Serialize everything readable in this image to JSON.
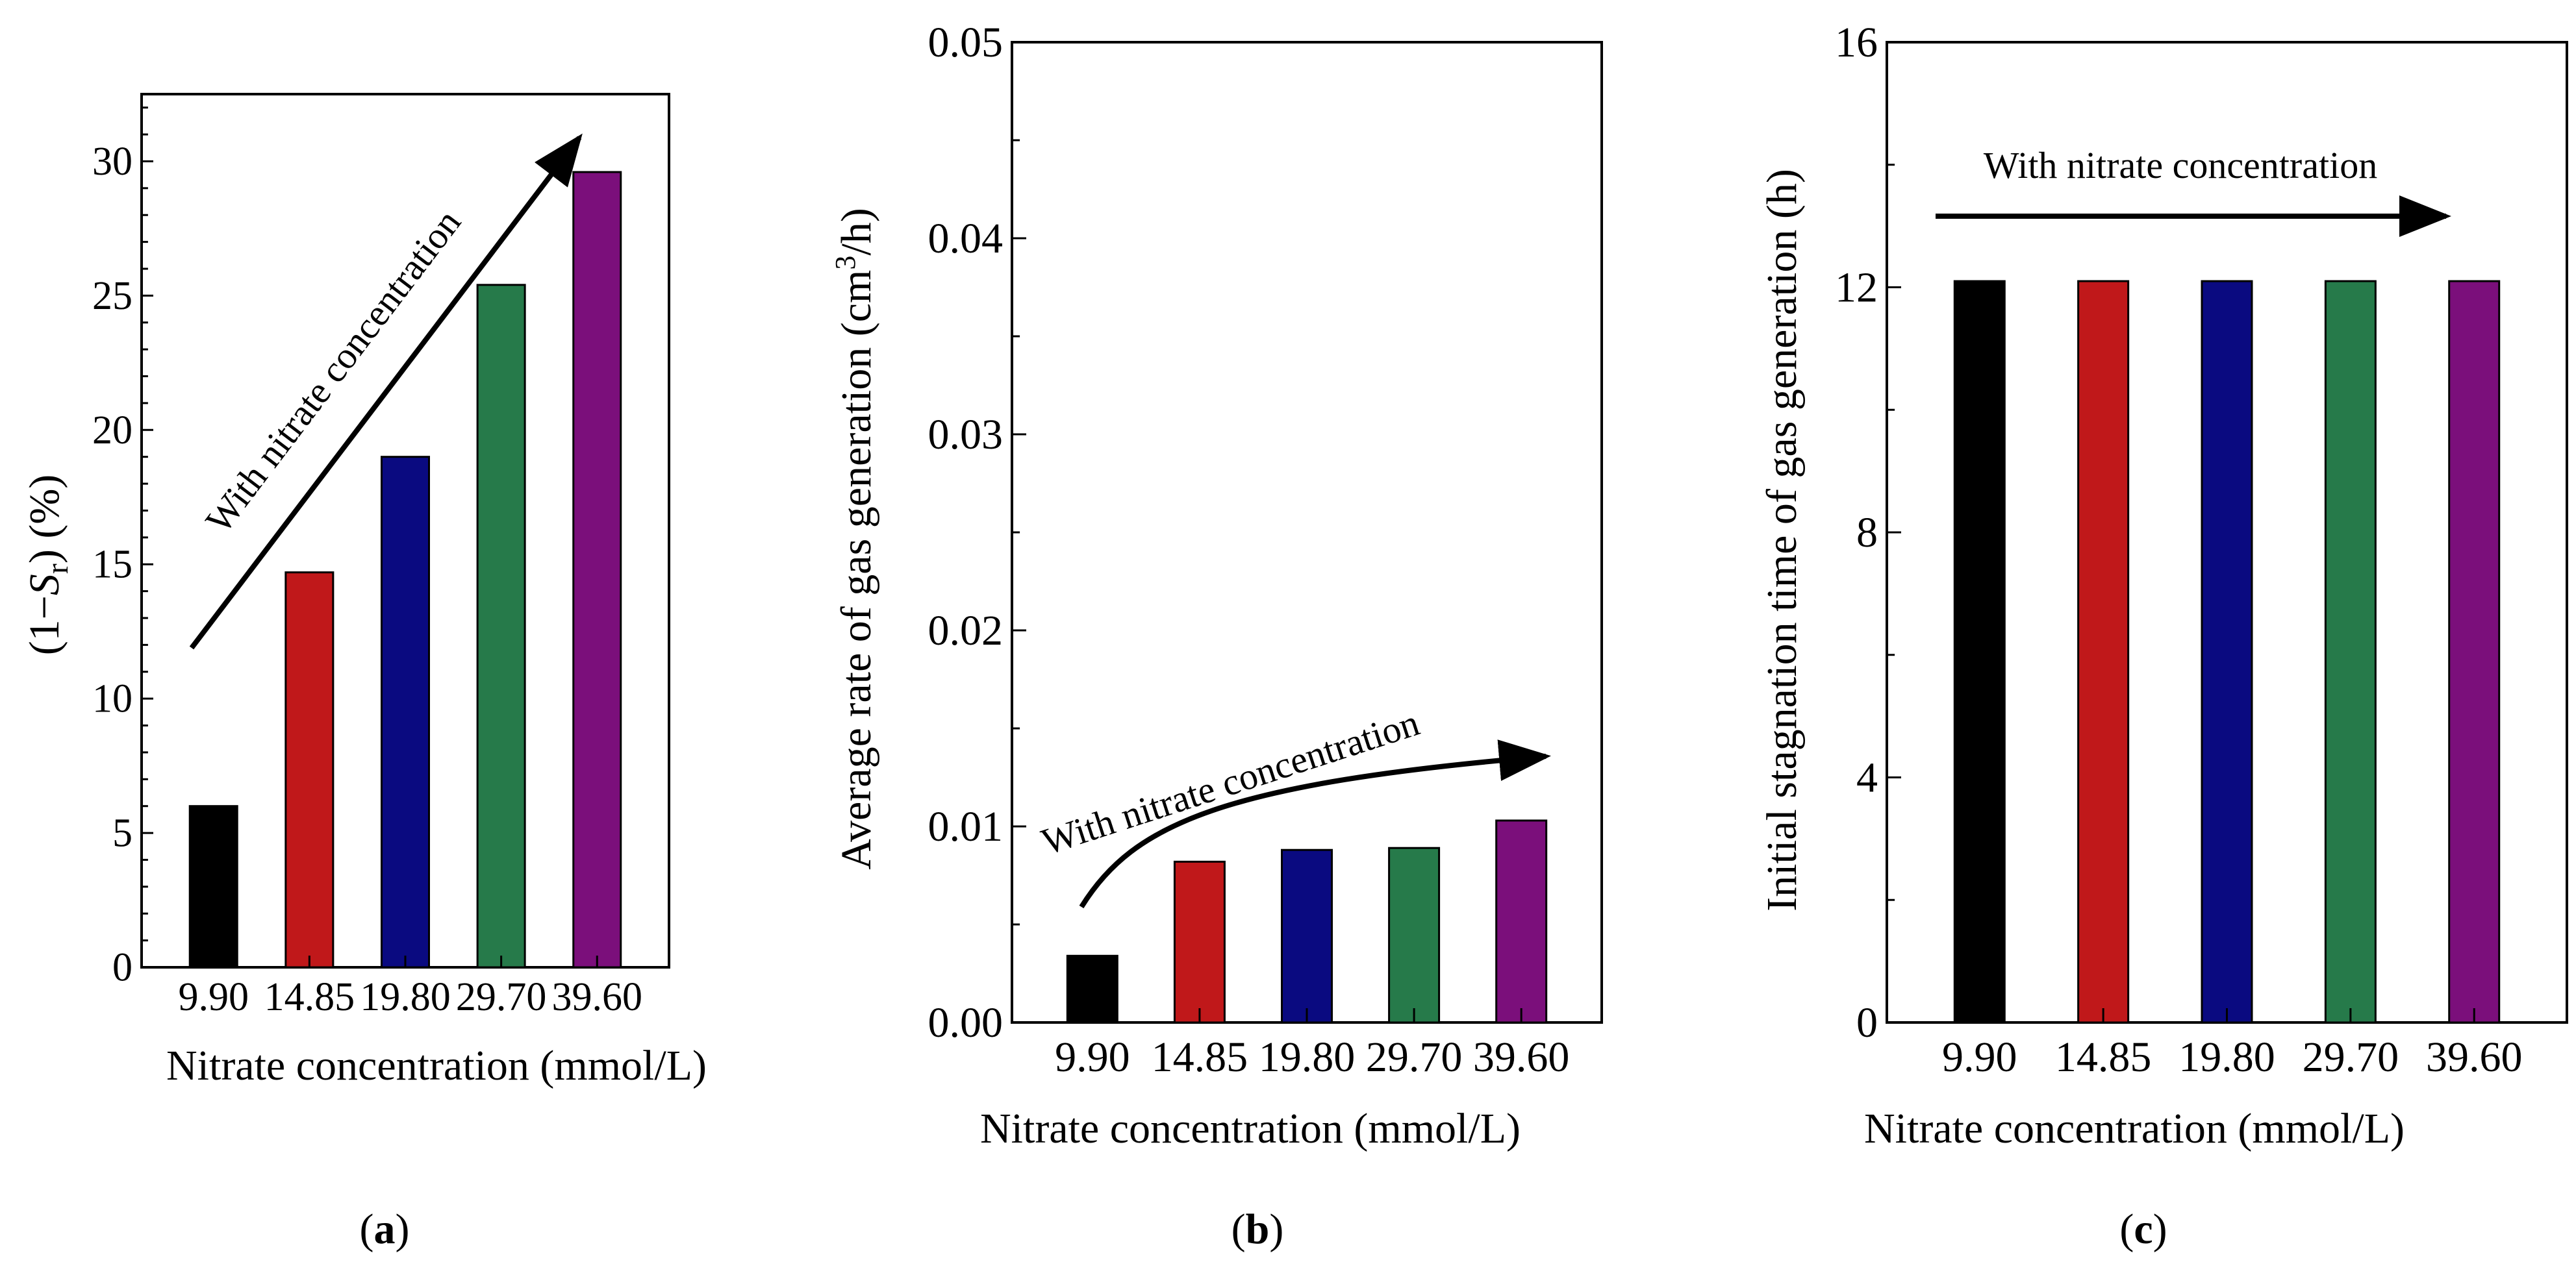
{
  "chart_data": [
    {
      "panel_label": "(a)",
      "type": "bar",
      "categories": [
        "9.90",
        "14.85",
        "19.80",
        "29.70",
        "39.60"
      ],
      "values": [
        6.0,
        14.7,
        19.0,
        25.4,
        29.6
      ],
      "ylim": [
        0,
        32.5
      ],
      "yticks": [
        "0",
        "5",
        "10",
        "15",
        "20",
        "25",
        "30"
      ],
      "xlabel": "Nitrate concentration (mmol/L)",
      "ylabel": "(1−Sr) (%)",
      "annotation": "With nitrate concentration",
      "grid": false
    },
    {
      "panel_label": "(b)",
      "type": "bar",
      "categories": [
        "9.90",
        "14.85",
        "19.80",
        "29.70",
        "39.60"
      ],
      "values": [
        0.0034,
        0.0082,
        0.0088,
        0.0089,
        0.0103
      ],
      "ylim": [
        0,
        0.05
      ],
      "yticks": [
        "0.00",
        "0.01",
        "0.02",
        "0.03",
        "0.04",
        "0.05"
      ],
      "xlabel": "Nitrate concentration (mmol/L)",
      "ylabel": "Average rate of gas generation (cm3/h)",
      "annotation": "With nitrate concentration",
      "grid": false
    },
    {
      "panel_label": "(c)",
      "type": "bar",
      "categories": [
        "9.90",
        "14.85",
        "19.80",
        "29.70",
        "39.60"
      ],
      "values": [
        12.1,
        12.1,
        12.1,
        12.1,
        12.1
      ],
      "ylim": [
        0,
        16
      ],
      "yticks": [
        "0",
        "4",
        "8",
        "12",
        "16"
      ],
      "xlabel": "Nitrate concentration (mmol/L)",
      "ylabel": "Initial stagnation time of gas generation (h)",
      "annotation": "With nitrate concentration",
      "grid": false
    }
  ],
  "colors": [
    "#000000",
    "#C0181A",
    "#0A0A80",
    "#267A4A",
    "#7B0F7B"
  ],
  "labels": {
    "a_ylabel_pre": "(1−",
    "a_ylabel_var": "S",
    "a_ylabel_sub": "r",
    "a_ylabel_post": ") (%)",
    "b_ylabel_pre": "Average rate of gas generation (cm",
    "b_ylabel_sup": "3",
    "b_ylabel_post": "/h)",
    "a_paren_open": "(",
    "a_letter": "a",
    "a_paren_close": ")",
    "b_paren_open": "(",
    "b_letter": "b",
    "b_paren_close": ")",
    "c_paren_open": "(",
    "c_letter": "c",
    "c_paren_close": ")"
  }
}
